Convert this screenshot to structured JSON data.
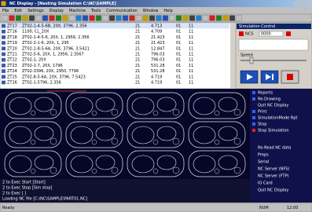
{
  "window": {
    "title": "NC Display - [Nesting Simulation C:\\NC\\SAMPLE]"
  },
  "menu": [
    "File",
    "Edit",
    "Settings",
    "Display",
    "Machine",
    "Tools",
    "Communication",
    "Window",
    "Help"
  ],
  "table": {
    "rows": [
      [
        "ZT17",
        "ZT02-1-4-5-6B, 20X, 3796, 2.356",
        "21",
        "4.713",
        "01",
        "11"
      ],
      [
        "ZT16",
        "1100, CL_20X",
        "21",
        "4.709",
        "01",
        "11"
      ],
      [
        "ZT18",
        "ZT02-1-4-5-6, 20X, 1, 2956, 2.356",
        "21",
        "21.423",
        "01",
        "11"
      ],
      [
        "ZT19",
        "ZT02-2-1-6, 20X, 1, 295",
        "21",
        "21.423",
        "01",
        "11"
      ],
      [
        "ZT20",
        "ZT02-1-8-5-6A, 20X, 3796, 3.5421",
        "21",
        "12.847",
        "01",
        "11"
      ],
      [
        "ZT21",
        "ZT02-5-6, 20X, 1, 2956, 2.3567",
        "21",
        "796.03",
        "01",
        "11"
      ],
      [
        "ZT22",
        "ZT02-1, 20X",
        "21",
        "796.03",
        "01",
        "11"
      ],
      [
        "ZT23",
        "ZT02-1-7, 20X, 1796",
        "21",
        "531.28",
        "01",
        "11"
      ],
      [
        "ZT24",
        "ZT02-3396, 20X, 2950, 7796",
        "21",
        "531.28",
        "01",
        "11"
      ],
      [
        "ZT25",
        "ZT02-8-5-6A, 20X, 3796, 7.5423",
        "21",
        "4.719",
        "01",
        "11"
      ],
      [
        "ZT26",
        "ZT02-1-5796, 2.356",
        "21",
        "4.719",
        "01",
        "11"
      ]
    ]
  },
  "panel": {
    "title": "Simulation Control",
    "code": "NCS",
    "field": "0000",
    "speed": "Speed"
  },
  "side_menu": {
    "top": [
      "Reports",
      "Re-Drawing",
      "Quit NC Display",
      "Print",
      "SimulationMode Rpt",
      "Stop",
      "Stop Simulation"
    ],
    "bottom": [
      "Re-Read NC data",
      "Preps",
      "Serial",
      "NC Server (NFS)",
      "NC Server (FTP)",
      "IO Card",
      "Quit NC Display"
    ]
  },
  "console": [
    "2 to Exec Start [Start]",
    "2 to Exec Stop [Sim stop]",
    "2 to Exec [ ]",
    "Loading NC file [C:\\NC\\SAMPLE\\PART01.NC]"
  ],
  "status": [
    "Ready",
    "NUM",
    "12:00"
  ]
}
